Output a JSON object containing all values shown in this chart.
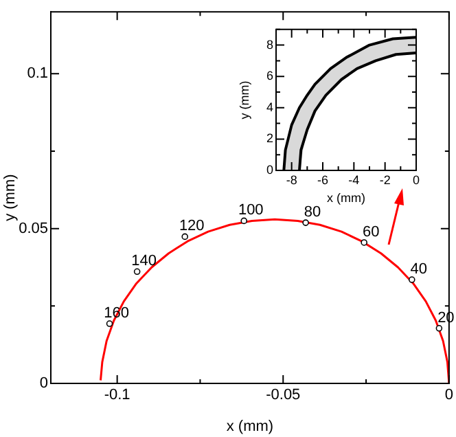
{
  "chart_data": [
    {
      "type": "line",
      "xlabel": "x (mm)",
      "ylabel": "y (mm)",
      "xlim": [
        -0.12,
        0
      ],
      "ylim": [
        0,
        0.12
      ],
      "xticks": [
        {
          "value": -0.1,
          "label": "-0.1"
        },
        {
          "value": -0.075,
          "label": null
        },
        {
          "value": -0.05,
          "label": "-0.05"
        },
        {
          "value": -0.025,
          "label": null
        },
        {
          "value": 0,
          "label": "0"
        }
      ],
      "yticks": [
        0,
        {
          "value": 0.025,
          "label": null
        },
        0.05,
        {
          "value": 0.075,
          "label": null
        },
        0.1
      ],
      "grid": false,
      "legend": false,
      "series": [
        {
          "color": "#ff0000",
          "marker": "none",
          "x": [
            0,
            -0.0005,
            -0.0018,
            -0.004,
            -0.007,
            -0.0108,
            -0.0154,
            -0.0205,
            -0.0263,
            -0.0324,
            -0.0389,
            -0.0456,
            -0.0525,
            -0.0594,
            -0.0661,
            -0.0726,
            -0.0788,
            -0.0845,
            -0.0896,
            -0.0942,
            -0.098,
            -0.101,
            -0.1032,
            -0.1045,
            -0.105
          ],
          "values": [
            0,
            0.0069,
            0.0137,
            0.0203,
            0.0265,
            0.0323,
            0.0375,
            0.042,
            0.0459,
            0.049,
            0.0512,
            0.0525,
            0.053,
            0.0525,
            0.0512,
            0.049,
            0.0459,
            0.042,
            0.0375,
            0.0323,
            0.0265,
            0.0203,
            0.0137,
            0.0069,
            0.001
          ]
        },
        {
          "type": "scatter",
          "color": "#000000",
          "marker": "circle",
          "x": [
            -0.003,
            -0.0112,
            -0.0256,
            -0.0432,
            -0.0618,
            -0.0796,
            -0.094,
            -0.1023
          ],
          "values": [
            0.0178,
            0.0335,
            0.0455,
            0.0519,
            0.0525,
            0.0474,
            0.0361,
            0.0193
          ]
        }
      ],
      "annotations": [
        {
          "text": "20",
          "x": -0.003,
          "y": 0.0178
        },
        {
          "text": "40",
          "x": -0.0112,
          "y": 0.0335
        },
        {
          "text": "60",
          "x": -0.0256,
          "y": 0.0455
        },
        {
          "text": "80",
          "x": -0.0432,
          "y": 0.0519
        },
        {
          "text": "100",
          "x": -0.0618,
          "y": 0.0525
        },
        {
          "text": "120",
          "x": -0.0796,
          "y": 0.0474
        },
        {
          "text": "140",
          "x": -0.094,
          "y": 0.0361
        },
        {
          "text": "160",
          "x": -0.1023,
          "y": 0.0193
        }
      ]
    },
    {
      "type": "line",
      "xlabel": "x (mm)",
      "ylabel": "y (mm)",
      "xlim": [
        -9,
        0
      ],
      "ylim": [
        0,
        9
      ],
      "xticks": [
        {
          "value": -9,
          "label": null
        },
        -8,
        {
          "value": -7,
          "label": null
        },
        -6,
        {
          "value": -5,
          "label": null
        },
        -4,
        {
          "value": -3,
          "label": null
        },
        -2,
        {
          "value": -1,
          "label": null
        },
        0
      ],
      "yticks": [
        0,
        {
          "value": 1,
          "label": null
        },
        2,
        {
          "value": 3,
          "label": null
        },
        4,
        {
          "value": 5,
          "label": null
        },
        6,
        {
          "value": 7,
          "label": null
        },
        8,
        {
          "value": 9,
          "label": null
        }
      ],
      "grid": false,
      "legend": false,
      "series": [
        {
          "color": "#000000",
          "marker": "none",
          "x": [
            -8.5,
            -8.4,
            -8.0,
            -7.5,
            -7.0,
            -6.5,
            -5.5,
            -4.5,
            -3.0,
            -1.5,
            0
          ],
          "values": [
            0,
            1.3,
            2.9,
            4.0,
            4.8,
            5.5,
            6.5,
            7.2,
            8.0,
            8.4,
            8.5
          ],
          "lower": [
            0,
            0,
            0,
            0,
            2.7,
            3.7,
            5.1,
            6.0,
            6.9,
            7.3,
            7.5
          ],
          "upper": [
            0,
            1.3,
            2.9,
            4.0,
            4.8,
            5.5,
            6.5,
            7.2,
            8.0,
            8.4,
            8.5
          ]
        },
        {
          "color": "#000000",
          "marker": "none",
          "x": [
            -7.5,
            -7.4,
            -7.0,
            -6.5,
            -5.8,
            -4.8,
            -3.8,
            -2.6,
            -1.3,
            0
          ],
          "values": [
            0,
            1.3,
            2.6,
            3.8,
            4.8,
            5.8,
            6.5,
            7.0,
            7.4,
            7.5
          ]
        }
      ]
    }
  ]
}
